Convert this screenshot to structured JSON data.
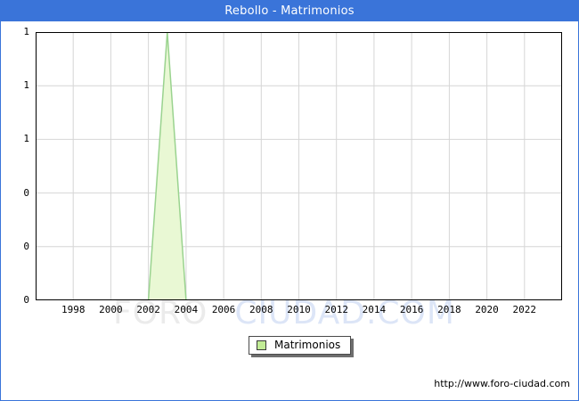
{
  "window": {
    "title": "Rebollo - Matrimonios"
  },
  "watermark": {
    "part1": "FORO",
    "part2": "CIUDAD.COM"
  },
  "legend": {
    "label": "Matrimonios",
    "swatch_color": "#c2ec96"
  },
  "footer": {
    "url": "http://www.foro-ciudad.com"
  },
  "colors": {
    "titlebar": "#3a74d9",
    "window_border": "#3a74d9",
    "plot_border": "#000000",
    "grid": "#d6d6d6",
    "area_fill": "#e9f8d4",
    "area_line": "#9ad38f",
    "watermark_gray": "#ebebeb",
    "watermark_blue": "#dce5f7"
  },
  "chart_data": {
    "type": "area",
    "title": "Rebollo - Matrimonios",
    "xlabel": "",
    "ylabel": "",
    "xlim": [
      1996,
      2024
    ],
    "ylim": [
      0,
      1
    ],
    "grid": true,
    "legend_position": "bottom-center",
    "x_ticks": [
      1998,
      2000,
      2002,
      2004,
      2006,
      2008,
      2010,
      2012,
      2014,
      2016,
      2018,
      2020,
      2022
    ],
    "y_ticks": [
      {
        "v": 1.0,
        "label": "1"
      },
      {
        "v": 0.8,
        "label": "1"
      },
      {
        "v": 0.6,
        "label": "1"
      },
      {
        "v": 0.4,
        "label": "0"
      },
      {
        "v": 0.2,
        "label": "0"
      },
      {
        "v": 0.0,
        "label": "0"
      }
    ],
    "y_gridlines": [
      0.2,
      0.4,
      0.6,
      0.8
    ],
    "series": [
      {
        "name": "Matrimonios",
        "years": [
          1996,
          1997,
          1998,
          1999,
          2000,
          2001,
          2002,
          2003,
          2004,
          2005,
          2006,
          2007,
          2008,
          2009,
          2010,
          2011,
          2012,
          2013,
          2014,
          2015,
          2016,
          2017,
          2018,
          2019,
          2020,
          2021,
          2022,
          2023
        ],
        "values": [
          0,
          0,
          0,
          0,
          0,
          0,
          0,
          1,
          0,
          0,
          0,
          0,
          0,
          0,
          0,
          0,
          0,
          0,
          0,
          0,
          0,
          0,
          0,
          0,
          0,
          0,
          0,
          0
        ],
        "fill_color": "#e9f8d4",
        "line_color": "#9ad38f"
      }
    ]
  }
}
